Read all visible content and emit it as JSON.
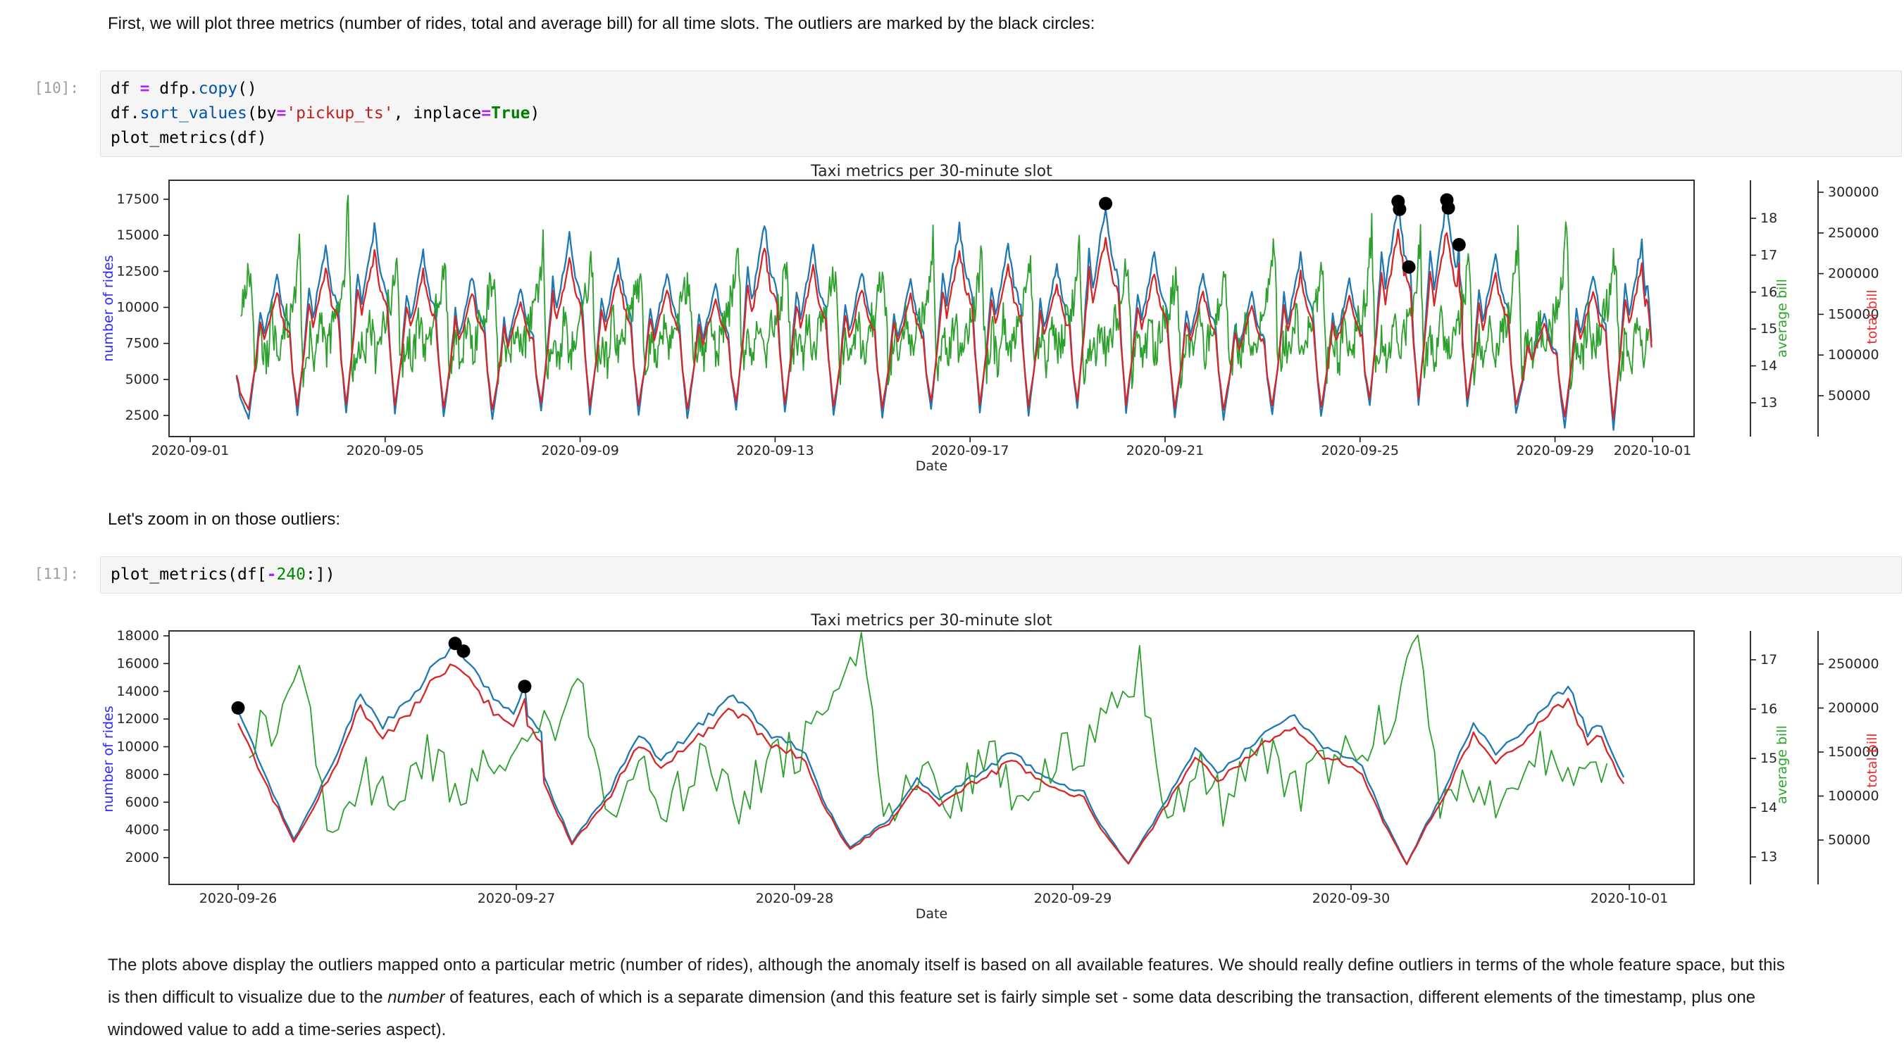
{
  "notebook": {
    "md1": "First, we will plot three metrics (number of rides, total and average bill) for all time slots. The outliers are marked by the black circles:",
    "md2": "Let's zoom in on those outliers:",
    "md3": {
      "p1": "The plots above display the outliers mapped onto a particular metric (number of rides), although the anomaly itself is based on all available features. We should really define outliers in terms of the whole feature space, but this is then difficult to visualize due to the ",
      "em": "number",
      "p2": " of features, each of which is a separate dimension (and this feature set is fairly simple set - some data describing the transaction, different elements of the timestamp, plus one windowed value to add a time-series aspect)."
    },
    "cells": [
      {
        "prompt": "[10]:",
        "lines": [
          [
            [
              "df",
              "v"
            ],
            [
              " ",
              "pl"
            ],
            [
              "=",
              "op"
            ],
            [
              " ",
              "pl"
            ],
            [
              "dfp",
              "v"
            ],
            [
              ".",
              "pl"
            ],
            [
              "copy",
              "prop"
            ],
            [
              "()",
              "pl"
            ]
          ],
          [
            [
              "df",
              "v"
            ],
            [
              ".",
              "pl"
            ],
            [
              "sort_values",
              "prop"
            ],
            [
              "(",
              "pl"
            ],
            [
              "by",
              "v"
            ],
            [
              "=",
              "op"
            ],
            [
              "'pickup_ts'",
              "str"
            ],
            [
              ", ",
              "pl"
            ],
            [
              "inplace",
              "v"
            ],
            [
              "=",
              "op"
            ],
            [
              "True",
              "kw"
            ],
            [
              ")",
              "pl"
            ]
          ],
          [
            [
              "plot_metrics",
              "v"
            ],
            [
              "(",
              "pl"
            ],
            [
              "df",
              "v"
            ],
            [
              ")",
              "pl"
            ]
          ]
        ]
      },
      {
        "prompt": "[11]:",
        "lines": [
          [
            [
              "plot_metrics",
              "v"
            ],
            [
              "(",
              "pl"
            ],
            [
              "df",
              "v"
            ],
            [
              "[",
              "pl"
            ],
            [
              "-",
              "op"
            ],
            [
              "240",
              "num"
            ],
            [
              ":",
              "pl"
            ],
            [
              "])",
              "pl"
            ]
          ]
        ]
      }
    ]
  },
  "chart_data": [
    {
      "type": "line",
      "title": "Taxi metrics per 30-minute slot",
      "xlabel": "Date",
      "x_tick_labels": [
        "2020-09-01",
        "2020-09-05",
        "2020-09-09",
        "2020-09-13",
        "2020-09-17",
        "2020-09-21",
        "2020-09-25",
        "2020-09-29",
        "2020-10-01"
      ],
      "x_tick_days": [
        0,
        4,
        8,
        12,
        16,
        20,
        24,
        28,
        30
      ],
      "span_days": [
        0.95,
        29.98
      ],
      "axes": {
        "rides": {
          "side": "left",
          "label": "number of rides",
          "label_color": "#2929ff",
          "ticks": [
            17500,
            15000,
            12500,
            10000,
            7500,
            5000,
            2500
          ],
          "range": [
            1030,
            18870
          ]
        },
        "avg": {
          "side": "right",
          "label": "average bill",
          "label_color": "#2ca62c",
          "ticks": [
            18,
            17,
            16,
            15,
            14,
            13
          ],
          "range": [
            12.1,
            19.0
          ]
        },
        "total": {
          "side": "right2",
          "label": "total bill",
          "label_color": "#f22b2b",
          "ticks": [
            300000,
            250000,
            200000,
            150000,
            100000,
            50000
          ],
          "range": [
            0,
            315000
          ]
        }
      },
      "series": {
        "rides": {
          "name": "number of rides",
          "color": "#1f77b4",
          "axis": "rides",
          "first_day_index": 1,
          "daily_peaks": [
            12300,
            14200,
            15600,
            13800,
            12200,
            11400,
            15000,
            13600,
            12500,
            11800,
            15800,
            14100,
            12600,
            12000,
            15600,
            14400,
            13000,
            17200,
            13800,
            12400,
            11000,
            13600,
            12000,
            17350,
            17450,
            13800,
            9600,
            12400,
            14400
          ],
          "daily_troughs": [
            2300,
            2500,
            2700,
            2600,
            2400,
            2200,
            2800,
            2600,
            2500,
            2300,
            2900,
            2700,
            2500,
            2400,
            2900,
            2700,
            2500,
            3000,
            2700,
            2400,
            2200,
            2600,
            2400,
            3200,
            3300,
            3100,
            2700,
            1600,
            1500
          ],
          "extras": [
            [
              0.95,
              5300
            ],
            [
              1.02,
              3800
            ],
            [
              25.0,
              12800
            ],
            [
              25.99,
              12600
            ],
            [
              26.03,
              14350
            ],
            [
              26.09,
              11200
            ],
            [
              29.85,
              11000
            ],
            [
              29.98,
              7600
            ]
          ]
        },
        "avg_bill": {
          "name": "average bill",
          "color": "#2ca02c",
          "axis": "avg",
          "first_day_index": 1,
          "base": 14.9,
          "noise": 0.55,
          "daily_spikes": [
            16.8,
            17.2,
            18.55,
            17.0,
            16.5,
            16.3,
            17.3,
            16.8,
            16.4,
            16.3,
            17.5,
            17.0,
            16.6,
            16.4,
            17.4,
            17.1,
            16.7,
            17.6,
            16.9,
            16.5,
            16.2,
            17.2,
            16.6,
            17.7,
            17.4,
            17.0,
            17.3,
            17.9,
            17.1
          ]
        },
        "total_bill": {
          "name": "total bill",
          "color": "#d62728",
          "axis": "total",
          "derived_from": "rides",
          "factor": 14.55
        }
      },
      "outliers": {
        "color": "#000000",
        "points": [
          [
            18.78,
            17200
          ],
          [
            24.78,
            17350
          ],
          [
            24.81,
            16800
          ],
          [
            25.0,
            12800
          ],
          [
            25.78,
            17450
          ],
          [
            25.81,
            16900
          ],
          [
            26.03,
            14350
          ]
        ]
      }
    },
    {
      "type": "line",
      "title": "Taxi metrics per 30-minute slot",
      "xlabel": "Date",
      "x_tick_labels": [
        "2020-09-26",
        "2020-09-27",
        "2020-09-28",
        "2020-09-29",
        "2020-09-30",
        "2020-10-01"
      ],
      "x_tick_days": [
        0,
        1,
        2,
        3,
        4,
        5
      ],
      "span_days": [
        0.0,
        4.98
      ],
      "axes": {
        "rides": {
          "side": "left",
          "label": "number of rides",
          "label_color": "#2929ff",
          "ticks": [
            18000,
            16000,
            14000,
            12000,
            10000,
            8000,
            6000,
            4000,
            2000
          ],
          "range": [
            0,
            18400
          ]
        },
        "avg": {
          "side": "right",
          "label": "average bill",
          "label_color": "#2ca62c",
          "ticks": [
            17,
            16,
            15,
            14,
            13
          ],
          "range": [
            12.4,
            17.6
          ]
        },
        "total": {
          "side": "right2",
          "label": "total bill",
          "label_color": "#f22b2b",
          "ticks": [
            250000,
            200000,
            150000,
            100000,
            50000
          ],
          "range": [
            0,
            288000
          ]
        }
      },
      "series": {
        "rides": {
          "name": "number of rides",
          "color": "#1f77b4",
          "axis": "rides",
          "first_day_index": 0,
          "daily_peaks": [
            17450,
            13800,
            9600,
            12400,
            14400
          ],
          "daily_troughs": [
            3300,
            3100,
            2700,
            1600,
            1500
          ],
          "extras": [
            [
              0.0,
              12800
            ],
            [
              0.07,
              9200
            ],
            [
              0.99,
              12600
            ],
            [
              1.03,
              14350
            ],
            [
              1.09,
              11200
            ],
            [
              4.85,
              11000
            ],
            [
              4.98,
              7800
            ]
          ]
        },
        "avg_bill": {
          "name": "average bill",
          "color": "#2ca02c",
          "axis": "avg",
          "first_day_index": 0,
          "base": 14.8,
          "noise": 0.55,
          "daily_spikes": [
            16.9,
            16.6,
            17.3,
            16.9,
            17.2
          ]
        },
        "total_bill": {
          "name": "total bill",
          "color": "#d62728",
          "axis": "total",
          "derived_from": "rides",
          "factor": 14.55
        }
      },
      "outliers": {
        "color": "#000000",
        "points": [
          [
            0.0,
            12800
          ],
          [
            0.78,
            17450
          ],
          [
            0.81,
            16900
          ],
          [
            1.03,
            14350
          ]
        ]
      }
    }
  ]
}
